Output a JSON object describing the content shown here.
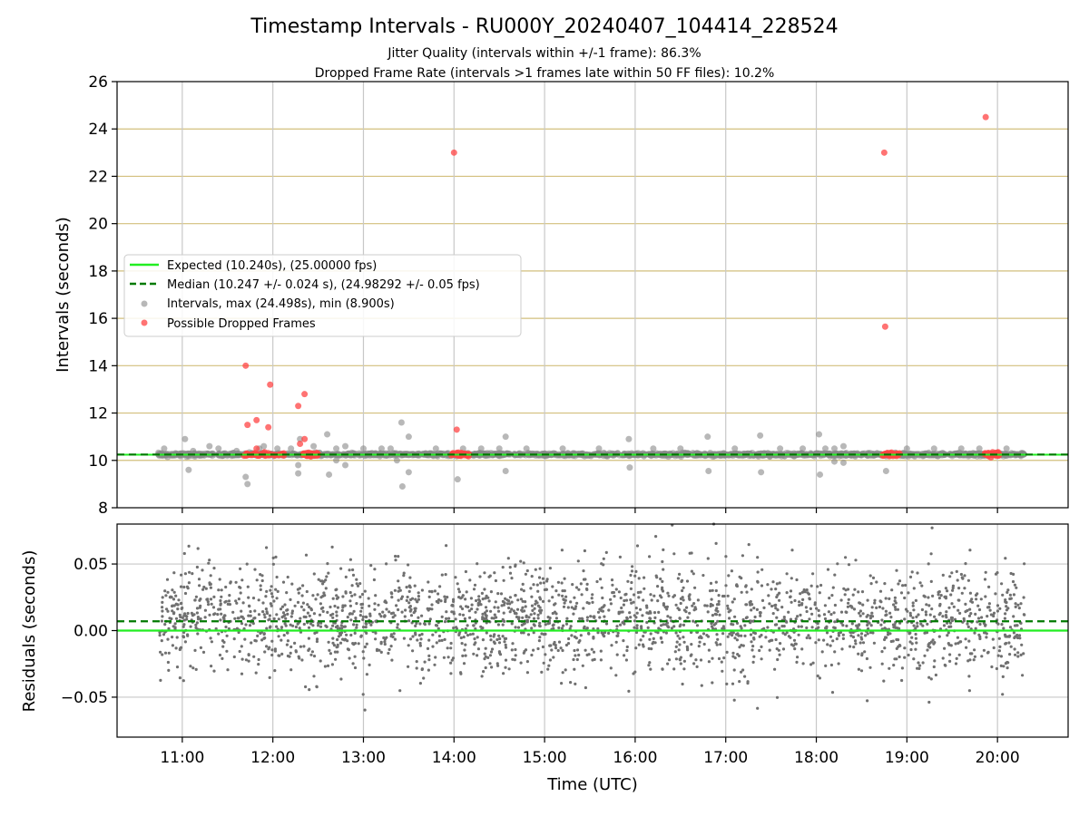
{
  "chart_data": [
    {
      "type": "scatter",
      "title": "Timestamp Intervals - RU000Y_20240407_104414_228524",
      "subtitle_lines": [
        "Jitter Quality (intervals within +/-1 frame): 86.3%",
        "Dropped Frame Rate (intervals >1 frames late within 50 FF files): 10.2%"
      ],
      "xlabel": "",
      "ylabel": "Intervals (seconds)",
      "x_unit": "hours UTC",
      "xlim": [
        10.28,
        20.78
      ],
      "ylim": [
        8,
        26
      ],
      "y_ticks": [
        8,
        10,
        12,
        14,
        16,
        18,
        20,
        22,
        24,
        26
      ],
      "y_tick_labels": [
        "8",
        "10",
        "12",
        "14",
        "16",
        "18",
        "20",
        "22",
        "24",
        "26"
      ],
      "x_ticks": [
        11,
        12,
        13,
        14,
        15,
        16,
        17,
        18,
        19,
        20
      ],
      "grid": true,
      "legend_position": "center-left",
      "colors": {
        "expected": "#22ee22",
        "median": "#007a00",
        "intervals": "#888888",
        "dropped": "#ff4444",
        "hgrid": "#d2bf7c",
        "vgrid": "#c8c8c8"
      },
      "expected_value": 10.24,
      "median_value": 10.247,
      "legend": [
        "Expected (10.240s), (25.00000 fps)",
        "Median (10.247 +/- 0.024 s), (24.98292 +/- 0.05 fps)",
        "Intervals, max (24.498s), min (8.900s)",
        "Possible Dropped Frames"
      ],
      "series": [
        {
          "name": "Intervals, max (24.498s), min (8.900s)",
          "band": {
            "x": [
              10.73,
              20.3
            ],
            "y": [
              10.15,
              10.35
            ]
          },
          "points": [
            [
              10.8,
              10.5
            ],
            [
              11.03,
              10.9
            ],
            [
              11.07,
              9.6
            ],
            [
              11.12,
              10.4
            ],
            [
              11.3,
              10.6
            ],
            [
              11.4,
              10.5
            ],
            [
              11.6,
              10.4
            ],
            [
              11.7,
              9.3
            ],
            [
              11.72,
              9.0
            ],
            [
              11.85,
              10.5
            ],
            [
              11.9,
              10.6
            ],
            [
              12.05,
              10.5
            ],
            [
              12.2,
              10.5
            ],
            [
              12.28,
              9.8
            ],
            [
              12.28,
              9.45
            ],
            [
              12.3,
              10.9
            ],
            [
              12.45,
              10.6
            ],
            [
              12.6,
              11.1
            ],
            [
              12.62,
              9.4
            ],
            [
              12.7,
              10.0
            ],
            [
              12.7,
              10.5
            ],
            [
              12.8,
              10.6
            ],
            [
              12.8,
              9.8
            ],
            [
              13.0,
              10.5
            ],
            [
              13.2,
              10.5
            ],
            [
              13.3,
              10.5
            ],
            [
              13.37,
              10.0
            ],
            [
              13.42,
              11.6
            ],
            [
              13.43,
              8.9
            ],
            [
              13.5,
              11.0
            ],
            [
              13.5,
              9.5
            ],
            [
              13.8,
              10.5
            ],
            [
              14.04,
              9.2
            ],
            [
              14.1,
              10.5
            ],
            [
              14.3,
              10.5
            ],
            [
              14.5,
              10.5
            ],
            [
              14.57,
              11.0
            ],
            [
              14.57,
              9.55
            ],
            [
              14.8,
              10.5
            ],
            [
              15.2,
              10.5
            ],
            [
              15.6,
              10.5
            ],
            [
              15.93,
              10.9
            ],
            [
              15.94,
              9.7
            ],
            [
              16.2,
              10.5
            ],
            [
              16.5,
              10.5
            ],
            [
              16.8,
              11.0
            ],
            [
              16.81,
              9.55
            ],
            [
              17.1,
              10.5
            ],
            [
              17.38,
              11.05
            ],
            [
              17.39,
              9.5
            ],
            [
              17.6,
              10.5
            ],
            [
              17.85,
              10.5
            ],
            [
              18.03,
              11.1
            ],
            [
              18.04,
              9.4
            ],
            [
              18.1,
              10.5
            ],
            [
              18.2,
              10.5
            ],
            [
              18.2,
              9.95
            ],
            [
              18.3,
              10.6
            ],
            [
              18.3,
              9.9
            ],
            [
              18.77,
              9.55
            ],
            [
              19.0,
              10.5
            ],
            [
              19.3,
              10.5
            ],
            [
              19.6,
              10.5
            ],
            [
              19.8,
              10.5
            ],
            [
              20.1,
              10.5
            ]
          ]
        },
        {
          "name": "Possible Dropped Frames",
          "points": [
            [
              11.7,
              14.0
            ],
            [
              11.72,
              11.5
            ],
            [
              11.82,
              11.7
            ],
            [
              11.82,
              10.5
            ],
            [
              11.95,
              11.4
            ],
            [
              11.97,
              13.2
            ],
            [
              12.28,
              12.3
            ],
            [
              12.3,
              10.7
            ],
            [
              12.35,
              12.8
            ],
            [
              12.35,
              10.9
            ],
            [
              14.0,
              23.0
            ],
            [
              14.03,
              11.3
            ],
            [
              18.75,
              23.0
            ],
            [
              18.76,
              15.65
            ],
            [
              19.87,
              24.5
            ]
          ],
          "clusters": [
            [
              11.68,
              12.13
            ],
            [
              12.33,
              12.5
            ],
            [
              13.97,
              14.17
            ],
            [
              18.73,
              18.92
            ],
            [
              19.86,
              20.02
            ]
          ]
        }
      ]
    },
    {
      "type": "scatter",
      "xlabel": "Time (UTC)",
      "ylabel": "Residuals (seconds)",
      "xlim": [
        10.28,
        20.78
      ],
      "ylim": [
        -0.08,
        0.08
      ],
      "y_ticks": [
        -0.05,
        0.0,
        0.05
      ],
      "y_tick_labels": [
        "−0.05",
        "0.00",
        "0.05"
      ],
      "x_ticks": [
        11,
        12,
        13,
        14,
        15,
        16,
        17,
        18,
        19,
        20
      ],
      "x_tick_labels": [
        "11:00",
        "12:00",
        "13:00",
        "14:00",
        "15:00",
        "16:00",
        "17:00",
        "18:00",
        "19:00",
        "20:00"
      ],
      "grid": true,
      "expected_value": 0.0,
      "median_value": 0.007,
      "series": [
        {
          "name": "",
          "x_range": [
            10.75,
            20.3
          ],
          "count": 2400,
          "center": 0.008,
          "spread": 0.02,
          "range": [
            -0.075,
            0.08
          ]
        }
      ]
    }
  ]
}
